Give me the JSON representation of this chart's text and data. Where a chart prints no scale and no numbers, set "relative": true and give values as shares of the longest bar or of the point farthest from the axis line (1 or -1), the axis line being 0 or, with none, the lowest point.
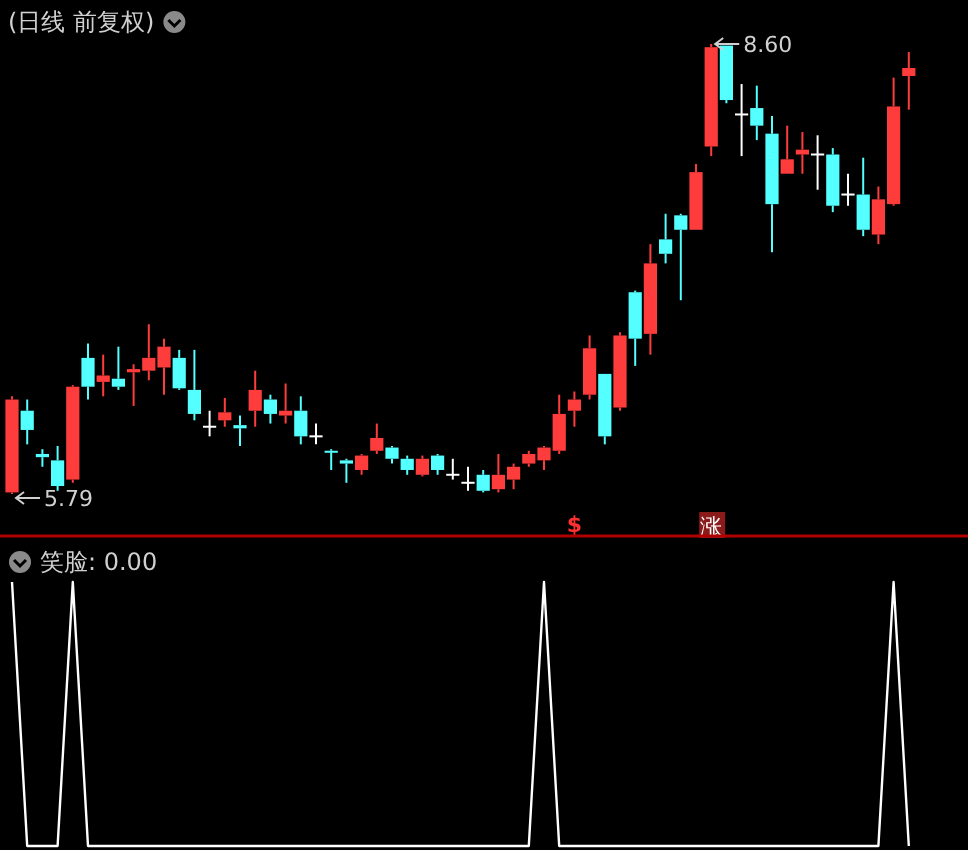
{
  "chart_data": [
    {
      "type": "candlestick",
      "title": "(日线 前复权)",
      "categories": [
        null,
        null,
        null,
        null,
        null,
        null,
        null,
        null,
        null,
        null,
        null,
        null,
        null,
        null,
        null,
        null,
        null,
        null,
        null,
        null,
        null,
        null,
        null,
        null,
        null,
        null,
        null,
        null,
        null,
        null,
        null,
        null,
        null,
        null,
        null,
        null,
        null,
        null,
        null,
        null,
        null,
        null,
        null,
        null,
        null,
        null,
        null,
        null,
        null,
        null,
        null,
        null,
        null,
        null,
        null,
        null,
        null,
        null,
        null,
        null
      ],
      "ohlc": [
        [
          5.8,
          6.4,
          5.79,
          6.38
        ],
        [
          6.31,
          6.38,
          6.1,
          6.19
        ],
        [
          6.04,
          6.07,
          5.96,
          6.02
        ],
        [
          6.0,
          6.09,
          5.81,
          5.84
        ],
        [
          5.88,
          6.47,
          5.86,
          6.46
        ],
        [
          6.64,
          6.73,
          6.38,
          6.46
        ],
        [
          6.49,
          6.66,
          6.4,
          6.53
        ],
        [
          6.51,
          6.71,
          6.44,
          6.46
        ],
        [
          6.55,
          6.6,
          6.34,
          6.57
        ],
        [
          6.56,
          6.85,
          6.5,
          6.64
        ],
        [
          6.58,
          6.76,
          6.41,
          6.71
        ],
        [
          6.64,
          6.69,
          6.44,
          6.45
        ],
        [
          6.44,
          6.69,
          6.25,
          6.29
        ],
        [
          6.21,
          6.31,
          6.15,
          6.21
        ],
        [
          6.25,
          6.39,
          6.21,
          6.3
        ],
        [
          6.22,
          6.28,
          6.09,
          6.2
        ],
        [
          6.31,
          6.56,
          6.21,
          6.44
        ],
        [
          6.38,
          6.41,
          6.23,
          6.29
        ],
        [
          6.28,
          6.48,
          6.23,
          6.31
        ],
        [
          6.31,
          6.4,
          6.1,
          6.15
        ],
        [
          6.15,
          6.23,
          6.1,
          6.15
        ],
        [
          6.06,
          6.07,
          5.94,
          6.05
        ],
        [
          6.0,
          6.01,
          5.86,
          5.98
        ],
        [
          5.94,
          6.04,
          5.91,
          6.03
        ],
        [
          6.06,
          6.23,
          6.04,
          6.14
        ],
        [
          6.08,
          6.09,
          5.98,
          6.01
        ],
        [
          6.01,
          6.03,
          5.91,
          5.94
        ],
        [
          5.91,
          6.03,
          5.9,
          6.01
        ],
        [
          6.03,
          6.04,
          5.91,
          5.94
        ],
        [
          5.91,
          6.01,
          5.88,
          5.91
        ],
        [
          5.86,
          5.96,
          5.81,
          5.86
        ],
        [
          5.91,
          5.94,
          5.8,
          5.81
        ],
        [
          5.82,
          6.04,
          5.8,
          5.91
        ],
        [
          5.88,
          5.98,
          5.82,
          5.96
        ],
        [
          5.98,
          6.06,
          5.96,
          6.04
        ],
        [
          6.0,
          6.09,
          5.94,
          6.08
        ],
        [
          6.06,
          6.41,
          6.04,
          6.29
        ],
        [
          6.31,
          6.43,
          6.21,
          6.38
        ],
        [
          6.41,
          6.78,
          6.38,
          6.7
        ],
        [
          6.54,
          6.54,
          6.1,
          6.15
        ],
        [
          6.33,
          6.8,
          6.31,
          6.78
        ],
        [
          7.05,
          7.06,
          6.59,
          6.76
        ],
        [
          6.79,
          7.35,
          6.66,
          7.23
        ],
        [
          7.38,
          7.54,
          7.23,
          7.29
        ],
        [
          7.53,
          7.54,
          7.0,
          7.44
        ],
        [
          7.44,
          7.85,
          7.44,
          7.8
        ],
        [
          7.96,
          8.6,
          7.9,
          8.58
        ],
        [
          8.59,
          8.59,
          8.23,
          8.25
        ],
        [
          8.16,
          8.35,
          7.9,
          8.16
        ],
        [
          8.2,
          8.34,
          8.0,
          8.09
        ],
        [
          8.04,
          8.15,
          7.3,
          7.6
        ],
        [
          7.79,
          8.09,
          7.79,
          7.88
        ],
        [
          7.91,
          8.05,
          7.79,
          7.94
        ],
        [
          7.91,
          8.03,
          7.69,
          7.91
        ],
        [
          7.91,
          7.95,
          7.55,
          7.59
        ],
        [
          7.66,
          7.79,
          7.59,
          7.66
        ],
        [
          7.66,
          7.89,
          7.4,
          7.44
        ],
        [
          7.41,
          7.71,
          7.35,
          7.63
        ],
        [
          7.6,
          8.39,
          7.59,
          8.21
        ],
        [
          8.4,
          8.55,
          8.19,
          8.45
        ]
      ],
      "annotations": [
        "8.60",
        "5.79",
        "$",
        "涨"
      ]
    },
    {
      "type": "line",
      "title": "笑脸: 0.00",
      "relative": true,
      "categories": [
        null,
        null,
        null,
        null,
        null,
        null,
        null,
        null,
        null,
        null,
        null,
        null,
        null,
        null,
        null,
        null,
        null,
        null,
        null,
        null,
        null,
        null,
        null,
        null,
        null,
        null,
        null,
        null,
        null,
        null,
        null,
        null,
        null,
        null,
        null,
        null,
        null,
        null,
        null,
        null,
        null,
        null,
        null,
        null,
        null,
        null,
        null,
        null,
        null,
        null,
        null,
        null,
        null,
        null,
        null,
        null,
        null,
        null,
        null,
        null
      ],
      "series": [
        {
          "color": "#ffffff",
          "values": [
            1,
            0,
            0,
            0,
            1,
            0,
            0,
            0,
            0,
            0,
            0,
            0,
            0,
            0,
            0,
            0,
            0,
            0,
            0,
            0,
            0,
            0,
            0,
            0,
            0,
            0,
            0,
            0,
            0,
            0,
            0,
            0,
            0,
            0,
            0,
            1,
            0,
            0,
            0,
            0,
            0,
            0,
            0,
            0,
            0,
            0,
            0,
            0,
            0,
            0,
            0,
            0,
            0,
            0,
            0,
            0,
            0,
            0,
            1,
            0
          ]
        }
      ]
    }
  ]
}
